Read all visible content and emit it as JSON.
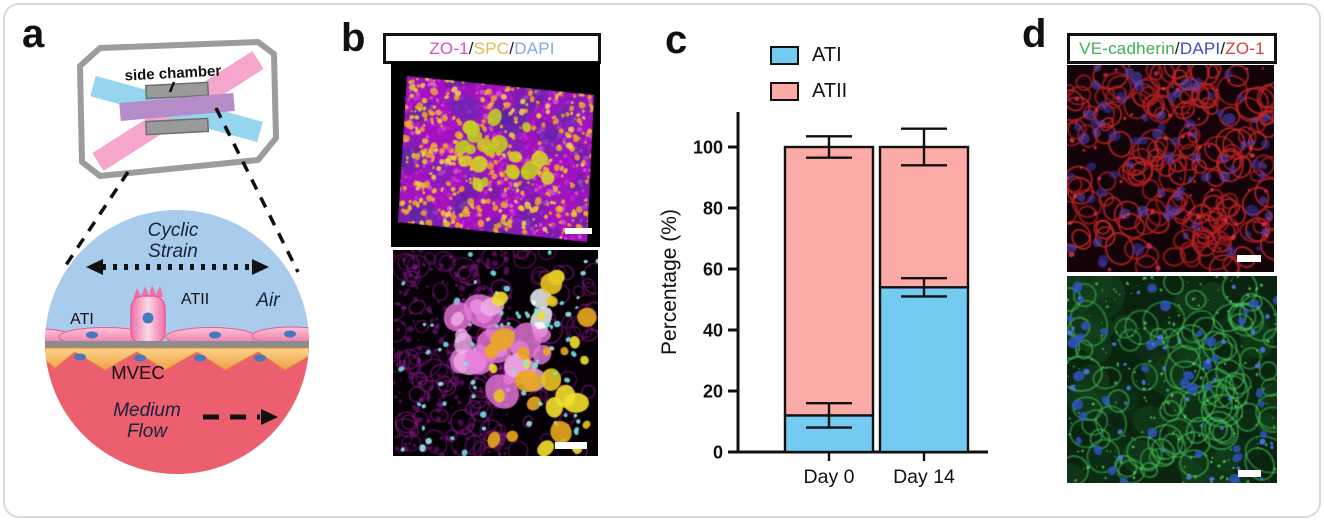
{
  "panels": {
    "a": {
      "letter": "a",
      "chip_label": "side chamber",
      "labels": {
        "cyclic1": "Cyclic",
        "cyclic2": "Strain",
        "air": "Air",
        "ati": "ATI",
        "atii": "ATII",
        "mvec": "MVEC",
        "flow1": "Medium",
        "flow2": "Flow"
      },
      "colors": {
        "air_side": "#A9CCEC",
        "medium_side": "#EC5F6F",
        "membrane": "#8C8C8C",
        "epithelium_pink": "#EF6FA4",
        "endothelium_orange": "#EF9F47",
        "channel_cyan": "#8ED2EF",
        "channel_pink": "#F4A6CD",
        "channel_purple": "#B48CC8"
      }
    },
    "b": {
      "letter": "b",
      "stain_label": [
        {
          "text": "ZO-1",
          "color": "#d44fc4"
        },
        {
          "text": "/",
          "color": "#1a1a1a"
        },
        {
          "text": "SPC",
          "color": "#dfc04e"
        },
        {
          "text": "/",
          "color": "#1a1a1a"
        },
        {
          "text": "DAPI",
          "color": "#84a9e6"
        }
      ]
    },
    "c": {
      "letter": "c"
    },
    "d": {
      "letter": "d",
      "stain_label": [
        {
          "text": "VE-cadherin",
          "color": "#3faf54"
        },
        {
          "text": "/",
          "color": "#1a1a1a"
        },
        {
          "text": "DAPI",
          "color": "#3c49c0"
        },
        {
          "text": "/",
          "color": "#1a1a1a"
        },
        {
          "text": "ZO-1",
          "color": "#d8403a"
        }
      ]
    }
  },
  "chart_data": {
    "type": "bar",
    "stacked": true,
    "categories": [
      "Day 0",
      "Day 14"
    ],
    "series": [
      {
        "name": "ATI",
        "color": "#73CBF2",
        "values": [
          12,
          54
        ],
        "errors": [
          4,
          3
        ]
      },
      {
        "name": "ATII",
        "color": "#FBAAA5",
        "values": [
          88,
          46
        ],
        "errors": [
          3.5,
          6
        ]
      }
    ],
    "title": "",
    "xlabel": "",
    "ylabel": "Percentage (%)",
    "yticks": [
      0,
      20,
      40,
      60,
      80,
      100
    ],
    "ylim": [
      0,
      112
    ],
    "legend_position": "top",
    "grid": false
  }
}
